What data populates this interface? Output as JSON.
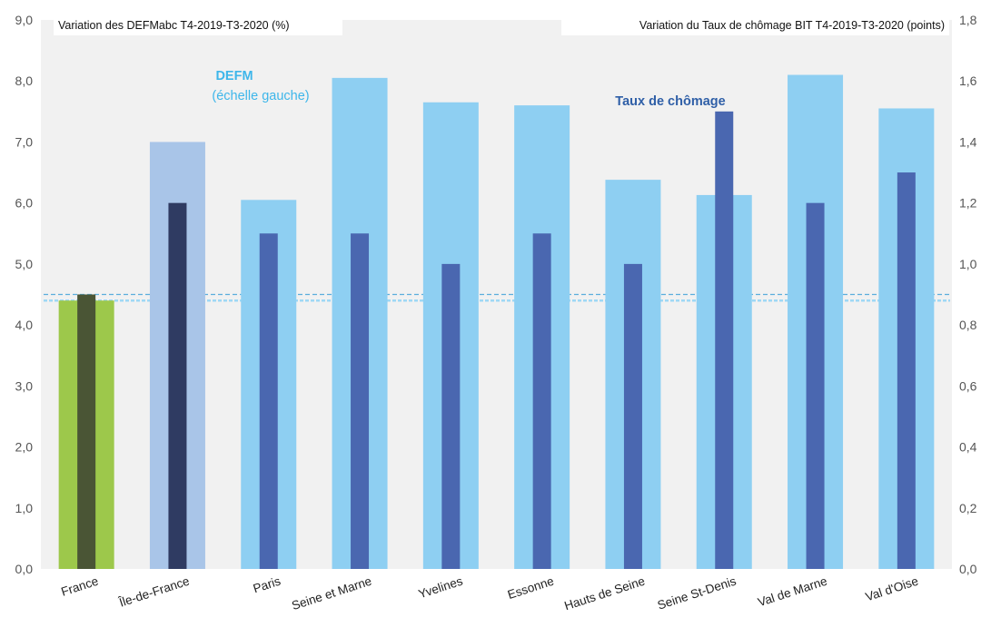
{
  "chart_data": {
    "type": "bar",
    "categories": [
      "France",
      "Île-de-France",
      "Paris",
      "Seine et Marne",
      "Yvelines",
      "Essonne",
      "Hauts de Seine",
      "Seine St-Denis",
      "Val de Marne",
      "Val d'Oise"
    ],
    "series": [
      {
        "name": "DEFM",
        "axis": "left",
        "values": [
          4.4,
          7.0,
          6.05,
          8.05,
          7.65,
          7.6,
          6.38,
          6.13,
          8.1,
          7.55
        ],
        "colors": [
          "#9dc84b",
          "#a9c5e8",
          "#8ecff2",
          "#8ecff2",
          "#8ecff2",
          "#8ecff2",
          "#8ecff2",
          "#8ecff2",
          "#8ecff2",
          "#8ecff2"
        ]
      },
      {
        "name": "Taux de chômage",
        "axis": "right",
        "values": [
          0.9,
          1.2,
          1.1,
          1.1,
          1.0,
          1.1,
          1.0,
          1.5,
          1.2,
          1.3
        ],
        "colors": [
          "#4a5535",
          "#2f3b62",
          "#4a67b0",
          "#4a67b0",
          "#4a67b0",
          "#4a67b0",
          "#4a67b0",
          "#4a67b0",
          "#4a67b0",
          "#4a67b0"
        ]
      }
    ],
    "reference_lines": [
      {
        "axis": "left",
        "value": 4.4,
        "color": "#9fd8f5",
        "style": "dashed"
      },
      {
        "axis": "right",
        "value": 0.9,
        "color": "#5aaedc",
        "style": "dashed"
      }
    ],
    "y_left": {
      "label": "Variation des DEFMabc T4-2019-T3-2020 (%)",
      "ylim": [
        0,
        9
      ],
      "ticks": [
        "0,0",
        "1,0",
        "2,0",
        "3,0",
        "4,0",
        "5,0",
        "6,0",
        "7,0",
        "8,0",
        "9,0"
      ]
    },
    "y_right": {
      "label": "Variation du Taux de chômage BIT T4-2019-T3-2020 (points)",
      "ylim": [
        0,
        1.8
      ],
      "ticks": [
        "0,0",
        "0,2",
        "0,4",
        "0,6",
        "0,8",
        "1,0",
        "1,2",
        "1,4",
        "1,6",
        "1,8"
      ]
    },
    "annotations": {
      "defm_title": "DEFM",
      "defm_subtitle": "(échelle gauche)",
      "taux": "Taux de chômage"
    },
    "plot_background": "#f1f1f1",
    "grid": false
  }
}
